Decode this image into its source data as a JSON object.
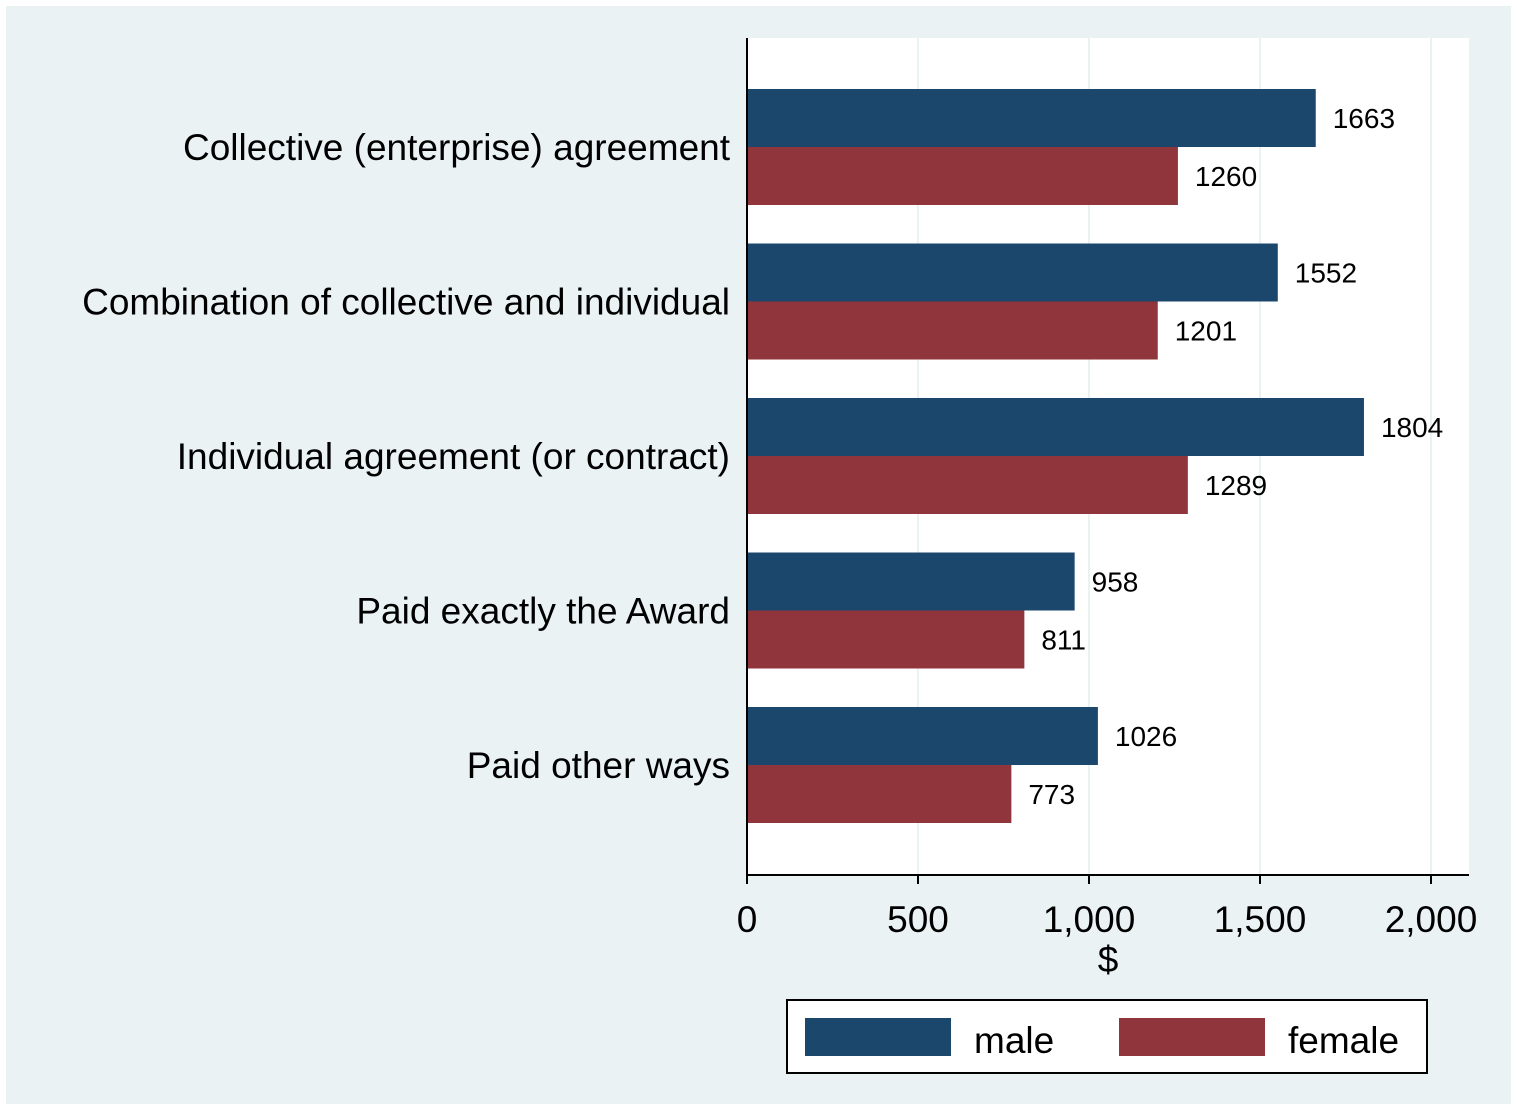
{
  "chart_data": {
    "type": "bar",
    "orientation": "horizontal",
    "categories": [
      "Collective (enterprise) agreement",
      "Combination of collective and individual",
      "Individual agreement (or contract)",
      "Paid exactly the Award",
      "Paid other ways"
    ],
    "series": [
      {
        "name": "male",
        "color": "#1c476d",
        "values": [
          1663,
          1552,
          1804,
          958,
          1026
        ]
      },
      {
        "name": "female",
        "color": "#90353b",
        "values": [
          1260,
          1201,
          1289,
          811,
          773
        ]
      }
    ],
    "x_ticks": [
      0,
      500,
      1000,
      1500,
      2000
    ],
    "x_tick_labels": [
      "0",
      "500",
      "1,000",
      "1,500",
      "2,000"
    ],
    "xlabel": "$",
    "xlim": [
      0,
      2000
    ],
    "grid": true,
    "legend": {
      "placement": "bottom"
    },
    "colors": {
      "outer_background": "#eaf2f3",
      "plot_background": "#ffffff",
      "grid": "#eaf2f3"
    }
  }
}
